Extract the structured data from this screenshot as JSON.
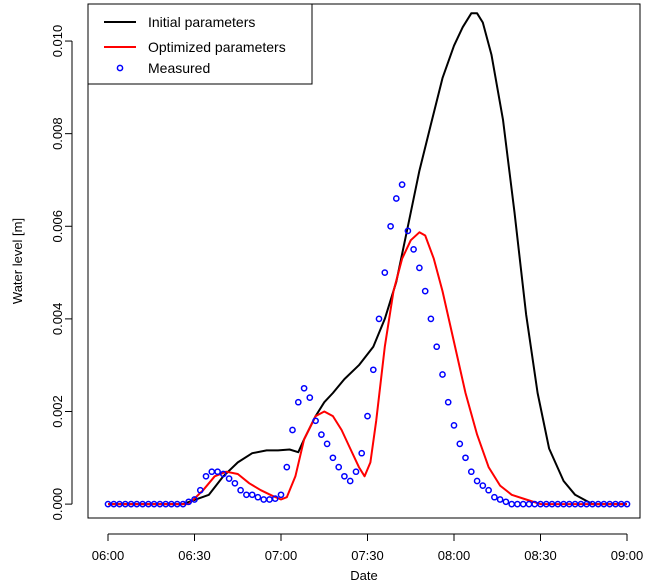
{
  "chart_data": {
    "type": "line",
    "xlabel": "Date",
    "ylabel": "Water level [m]",
    "xlim": [
      "06:00",
      "09:00"
    ],
    "ylim": [
      -0.0003,
      0.0108
    ],
    "x_ticks": [
      "06:00",
      "06:30",
      "07:00",
      "07:30",
      "08:00",
      "08:30",
      "09:00"
    ],
    "y_ticks": [
      "0.000",
      "0.002",
      "0.004",
      "0.006",
      "0.008",
      "0.010"
    ],
    "legend": {
      "position": "top-left"
    },
    "grid": false,
    "series": [
      {
        "name": "Initial parameters",
        "style": "line",
        "color": "#000000",
        "x": [
          "06:00",
          "06:26",
          "06:35",
          "06:40",
          "06:45",
          "06:50",
          "06:55",
          "06:59",
          "07:03",
          "07:06",
          "07:08",
          "07:12",
          "07:15",
          "07:18",
          "07:22",
          "07:27",
          "07:32",
          "07:36",
          "07:40",
          "07:44",
          "07:48",
          "07:52",
          "07:56",
          "08:00",
          "08:03",
          "08:06",
          "08:08",
          "08:10",
          "08:13",
          "08:17",
          "08:21",
          "08:25",
          "08:29",
          "08:33",
          "08:38",
          "08:42",
          "08:48",
          "08:55",
          "09:00"
        ],
        "y": [
          0.0,
          0.0,
          0.0002,
          0.0006,
          0.0009,
          0.0011,
          0.00116,
          0.00116,
          0.00118,
          0.00112,
          0.0014,
          0.0019,
          0.0022,
          0.0024,
          0.0027,
          0.003,
          0.0034,
          0.004,
          0.0048,
          0.006,
          0.0072,
          0.0082,
          0.0092,
          0.0099,
          0.0103,
          0.0106,
          0.0106,
          0.0104,
          0.0097,
          0.0083,
          0.0063,
          0.0041,
          0.0024,
          0.0012,
          0.0005,
          0.0002,
          0.0,
          0.0,
          0.0
        ]
      },
      {
        "name": "Optimized parameters",
        "style": "line",
        "color": "#ff0000",
        "x": [
          "06:00",
          "06:28",
          "06:33",
          "06:37",
          "06:41",
          "06:45",
          "06:49",
          "06:53",
          "06:57",
          "07:00",
          "07:02",
          "07:05",
          "07:08",
          "07:12",
          "07:15",
          "07:18",
          "07:21",
          "07:24",
          "07:27",
          "07:29",
          "07:31",
          "07:33",
          "07:36",
          "07:39",
          "07:42",
          "07:45",
          "07:48",
          "07:50",
          "07:53",
          "07:56",
          "08:00",
          "08:04",
          "08:08",
          "08:12",
          "08:16",
          "08:20",
          "08:25",
          "08:30",
          "08:40",
          "09:00"
        ],
        "y": [
          0.0,
          0.0,
          0.0003,
          0.0006,
          0.0007,
          0.00065,
          0.00045,
          0.0003,
          0.00018,
          0.0001,
          0.00015,
          0.0006,
          0.0014,
          0.0019,
          0.002,
          0.0019,
          0.0016,
          0.0012,
          0.0008,
          0.0006,
          0.0009,
          0.0018,
          0.0034,
          0.0046,
          0.0053,
          0.0057,
          0.00587,
          0.0058,
          0.0053,
          0.0046,
          0.0035,
          0.0024,
          0.0015,
          0.0008,
          0.0004,
          0.0002,
          0.0001,
          0.0,
          0.0,
          0.0
        ]
      },
      {
        "name": "Measured",
        "style": "points",
        "color": "#0000ff",
        "x": [
          "06:00",
          "06:02",
          "06:04",
          "06:06",
          "06:08",
          "06:10",
          "06:12",
          "06:14",
          "06:16",
          "06:18",
          "06:20",
          "06:22",
          "06:24",
          "06:26",
          "06:28",
          "06:30",
          "06:32",
          "06:34",
          "06:36",
          "06:38",
          "06:40",
          "06:42",
          "06:44",
          "06:46",
          "06:48",
          "06:50",
          "06:52",
          "06:54",
          "06:56",
          "06:58",
          "07:00",
          "07:02",
          "07:04",
          "07:06",
          "07:08",
          "07:10",
          "07:12",
          "07:14",
          "07:16",
          "07:18",
          "07:20",
          "07:22",
          "07:24",
          "07:26",
          "07:28",
          "07:30",
          "07:32",
          "07:34",
          "07:36",
          "07:38",
          "07:40",
          "07:42",
          "07:44",
          "07:46",
          "07:48",
          "07:50",
          "07:52",
          "07:54",
          "07:56",
          "07:58",
          "08:00",
          "08:02",
          "08:04",
          "08:06",
          "08:08",
          "08:10",
          "08:12",
          "08:14",
          "08:16",
          "08:18",
          "08:20",
          "08:22",
          "08:24",
          "08:26",
          "08:28",
          "08:30",
          "08:32",
          "08:34",
          "08:36",
          "08:38",
          "08:40",
          "08:42",
          "08:44",
          "08:46",
          "08:48",
          "08:50",
          "08:52",
          "08:54",
          "08:56",
          "08:58",
          "09:00"
        ],
        "y": [
          0.0,
          0.0,
          0.0,
          0.0,
          0.0,
          0.0,
          0.0,
          0.0,
          0.0,
          0.0,
          0.0,
          0.0,
          0.0,
          0.0,
          5e-05,
          0.0001,
          0.0003,
          0.0006,
          0.0007,
          0.0007,
          0.00065,
          0.00055,
          0.00045,
          0.0003,
          0.0002,
          0.0002,
          0.00015,
          0.0001,
          0.0001,
          0.00012,
          0.0002,
          0.0008,
          0.0016,
          0.0022,
          0.0025,
          0.0023,
          0.0018,
          0.0015,
          0.0013,
          0.001,
          0.0008,
          0.0006,
          0.0005,
          0.0007,
          0.0011,
          0.0019,
          0.0029,
          0.004,
          0.005,
          0.006,
          0.0066,
          0.0069,
          0.0059,
          0.0055,
          0.0051,
          0.0046,
          0.004,
          0.0034,
          0.0028,
          0.0022,
          0.0017,
          0.0013,
          0.001,
          0.0007,
          0.0005,
          0.0004,
          0.0003,
          0.00015,
          0.0001,
          5e-05,
          0.0,
          0.0,
          0.0,
          0.0,
          0.0,
          0.0,
          0.0,
          0.0,
          0.0,
          0.0,
          0.0,
          0.0,
          0.0,
          0.0,
          0.0,
          0.0,
          0.0,
          0.0,
          0.0,
          0.0,
          0.0
        ]
      }
    ]
  }
}
